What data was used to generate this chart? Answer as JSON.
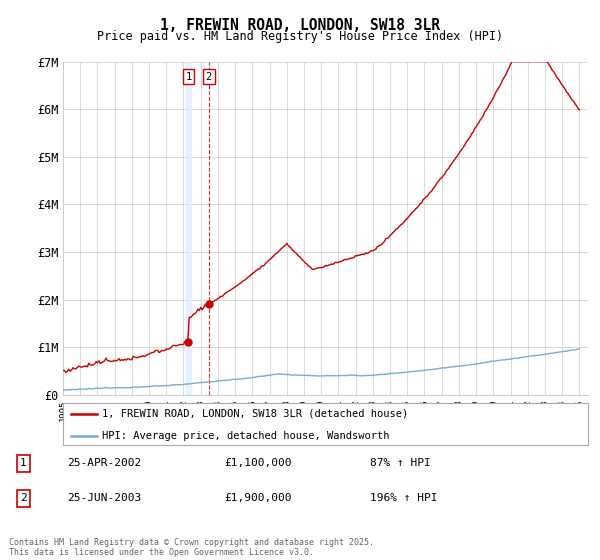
{
  "title": "1, FREWIN ROAD, LONDON, SW18 3LR",
  "subtitle": "Price paid vs. HM Land Registry's House Price Index (HPI)",
  "ylabel_ticks": [
    "£0",
    "£1M",
    "£2M",
    "£3M",
    "£4M",
    "£5M",
    "£6M",
    "£7M"
  ],
  "ylim": [
    0,
    7000000
  ],
  "xlim_start": 1995.0,
  "xlim_end": 2025.5,
  "red_color": "#cc0000",
  "blue_color": "#7aadcf",
  "vline1_color": "#cc0000",
  "vband1_color": "#ddeeff",
  "vertical_line1_x": 2002.29,
  "vertical_line2_x": 2003.47,
  "sale1_y": 1100000,
  "sale2_y": 1900000,
  "sale1_date": "25-APR-2002",
  "sale1_price": "£1,100,000",
  "sale1_hpi": "87% ↑ HPI",
  "sale2_date": "25-JUN-2003",
  "sale2_price": "£1,900,000",
  "sale2_hpi": "196% ↑ HPI",
  "legend1": "1, FREWIN ROAD, LONDON, SW18 3LR (detached house)",
  "legend2": "HPI: Average price, detached house, Wandsworth",
  "footer": "Contains HM Land Registry data © Crown copyright and database right 2025.\nThis data is licensed under the Open Government Licence v3.0.",
  "background_color": "#ffffff",
  "grid_color": "#cccccc"
}
